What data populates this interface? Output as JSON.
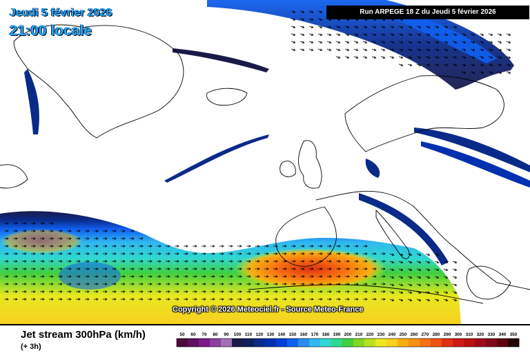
{
  "header": {
    "date_line": "Jeudi 5 février 2026",
    "time_line": "21:00 locale",
    "run_label": "Run ARPEGE 18 Z du Jeudi 5 février 2026"
  },
  "copyright": "Copyright © 2026 Meteociel.fr - Source Meteo-France",
  "footer": {
    "title": "Jet stream 300hPa (km/h)",
    "subtitle": "(+ 3h)"
  },
  "legend": {
    "ticks": [
      "50",
      "60",
      "70",
      "80",
      "90",
      "100",
      "110",
      "120",
      "130",
      "140",
      "150",
      "160",
      "170",
      "180",
      "190",
      "200",
      "210",
      "220",
      "230",
      "240",
      "250",
      "260",
      "270",
      "280",
      "290",
      "300",
      "310",
      "320",
      "330",
      "340",
      "350"
    ],
    "colors": [
      "#4a0a3a",
      "#5e1060",
      "#7a1a8a",
      "#8a40a0",
      "#a070b8",
      "#1a1a4a",
      "#10205a",
      "#0a2a8a",
      "#0030b0",
      "#0040d8",
      "#1060f0",
      "#2a8cf0",
      "#30b8f0",
      "#30d8d0",
      "#30d890",
      "#40d040",
      "#80d820",
      "#b8e020",
      "#e8e820",
      "#f8d020",
      "#f8b010",
      "#f89010",
      "#f87010",
      "#f05010",
      "#e03010",
      "#d01818",
      "#b81010",
      "#a00818",
      "#800818",
      "#600010",
      "#200000"
    ]
  },
  "map": {
    "background": "#ffffff",
    "coast_color": "#000000",
    "jet_colors": {
      "dark_navy": "#1a1a4a",
      "navy": "#0a2a8a",
      "blue": "#1060f0",
      "light_blue": "#30b8f0",
      "cyan": "#30d8d0",
      "green": "#40d040",
      "yellow": "#e8e820",
      "orange": "#f89010",
      "red": "#e03010"
    },
    "arrow_color": "#000000",
    "wind_direction": "eastward"
  }
}
